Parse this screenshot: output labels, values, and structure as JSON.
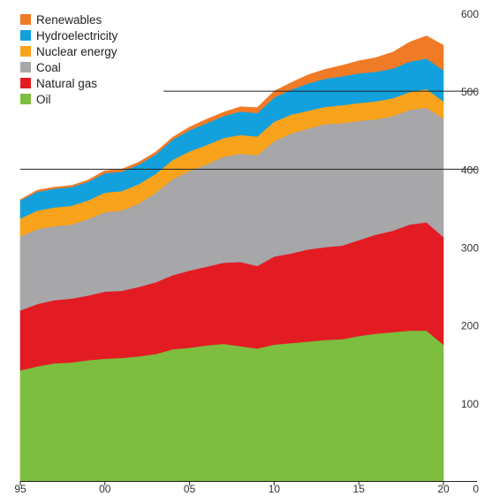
{
  "chart_data": {
    "type": "area",
    "stacked": true,
    "x": [
      1995,
      1996,
      1997,
      1998,
      1999,
      2000,
      2001,
      2002,
      2003,
      2004,
      2005,
      2006,
      2007,
      2008,
      2009,
      2010,
      2011,
      2012,
      2013,
      2014,
      2015,
      2016,
      2017,
      2018,
      2019,
      2020
    ],
    "x_tick_labels": [
      {
        "x": 1995,
        "label": "95"
      },
      {
        "x": 2000,
        "label": "00"
      },
      {
        "x": 2005,
        "label": "05"
      },
      {
        "x": 2010,
        "label": "10"
      },
      {
        "x": 2015,
        "label": "15"
      },
      {
        "x": 2020,
        "label": "20"
      }
    ],
    "y_ticks": [
      0,
      100,
      200,
      300,
      400,
      500,
      600
    ],
    "ylim": [
      0,
      600
    ],
    "axis_side": "right",
    "reference_lines": [
      400,
      500
    ],
    "legend_position": "top-left",
    "series": [
      {
        "name": "Oil",
        "color": "#7dbd3f",
        "values": [
          142,
          147,
          151,
          152,
          155,
          157,
          158,
          160,
          163,
          169,
          171,
          174,
          176,
          173,
          170,
          175,
          177,
          179,
          181,
          182,
          186,
          189,
          191,
          193,
          193,
          175
        ]
      },
      {
        "name": "Natural gas",
        "color": "#e31b23",
        "values": [
          77,
          80,
          81,
          82,
          83,
          86,
          86,
          89,
          92,
          95,
          99,
          101,
          104,
          108,
          106,
          113,
          115,
          118,
          119,
          120,
          123,
          127,
          130,
          136,
          139,
          138
        ]
      },
      {
        "name": "Coal",
        "color": "#a7a6a8",
        "values": [
          95,
          96,
          95,
          95,
          98,
          102,
          103,
          107,
          115,
          123,
          128,
          131,
          136,
          139,
          142,
          148,
          154,
          155,
          158,
          157,
          153,
          148,
          147,
          147,
          147,
          152
        ]
      },
      {
        "name": "Nuclear energy",
        "color": "#f8a31b",
        "values": [
          23,
          24,
          24,
          24,
          24,
          25,
          25,
          25,
          24,
          25,
          25,
          25,
          24,
          24,
          24,
          25,
          24,
          23,
          22,
          23,
          23,
          23,
          23,
          23,
          24,
          22
        ]
      },
      {
        "name": "Hydroelectricity",
        "color": "#13a1de",
        "values": [
          23,
          24,
          24,
          24,
          24,
          25,
          25,
          25,
          25,
          26,
          27,
          28,
          28,
          30,
          30,
          31,
          32,
          35,
          36,
          37,
          38,
          38,
          38,
          39,
          39,
          40
        ]
      },
      {
        "name": "Renewables",
        "color": "#f07b26",
        "values": [
          1,
          2,
          2,
          2,
          2,
          3,
          3,
          3,
          3,
          3,
          4,
          5,
          5,
          6,
          7,
          8,
          9,
          11,
          12,
          14,
          16,
          18,
          21,
          25,
          29,
          32
        ]
      }
    ]
  }
}
